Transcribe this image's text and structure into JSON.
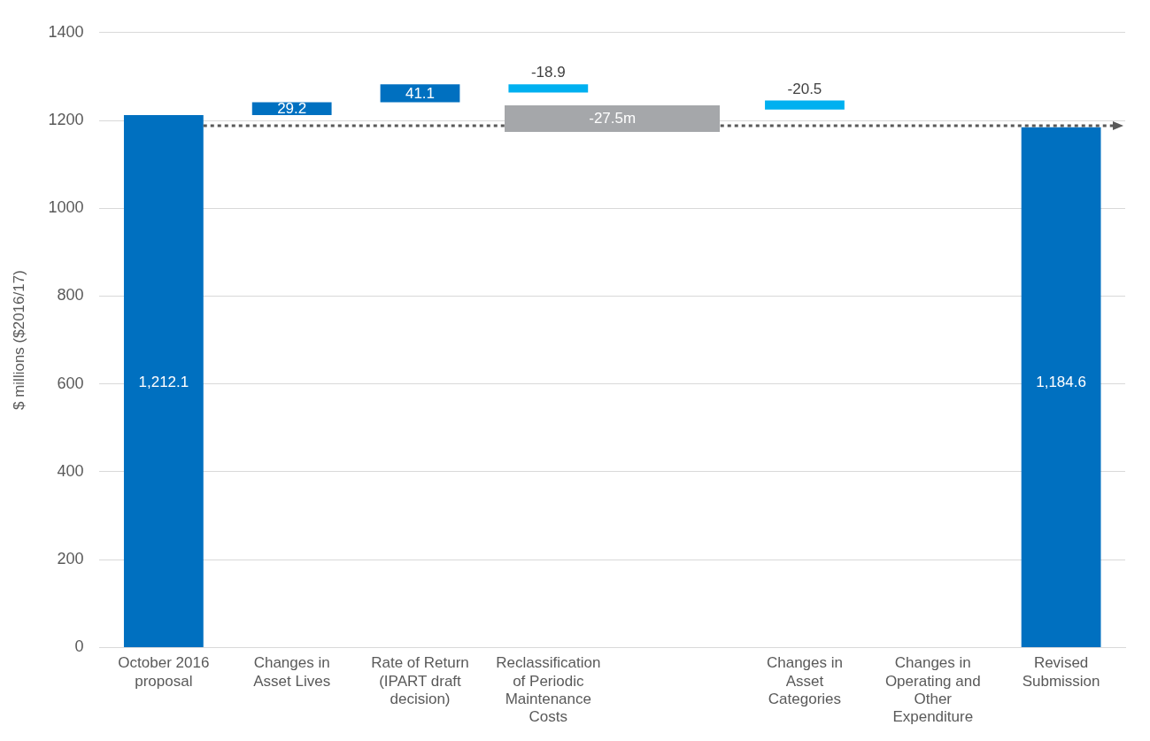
{
  "chart_data": {
    "type": "bar",
    "ylabel": "$ millions ($2016/17)",
    "categories": [
      "October 2016 proposal",
      "Changes in Asset Lives",
      "Rate of Return (IPART draft decision)",
      "Reclassification of Periodic Maintenance Costs",
      null,
      "Changes in Asset Categories",
      "Changes in Operating and Other Expenditure",
      "Revised Submission"
    ],
    "values": [
      1212.1,
      29.2,
      41.1,
      -18.9,
      null,
      -20.5,
      null,
      1184.6
    ],
    "base": [
      0,
      1212.1,
      1241.3,
      1282.4,
      null,
      1245.5,
      null,
      0
    ],
    "colors": [
      "#0070c0",
      "#0070c0",
      "#0070c0",
      "#00b0f0",
      "#00b0f0",
      "#00b0f0",
      "#00b0f0",
      "#0070c0"
    ],
    "value_labels": [
      "1,212.1",
      "29.2",
      "41.1",
      "-18.9",
      null,
      "-20.5",
      null,
      "1,184.6"
    ],
    "annotations": [
      "-27.5m"
    ],
    "ref_lines": [
      {
        "axis": "y",
        "value": 1188,
        "color": "#595959",
        "line_style": "dotted"
      }
    ],
    "ylim": [
      0,
      1400
    ],
    "yticks": [
      0,
      200,
      400,
      600,
      800,
      1000,
      1200,
      1400
    ],
    "grid": "y",
    "legend": false
  }
}
